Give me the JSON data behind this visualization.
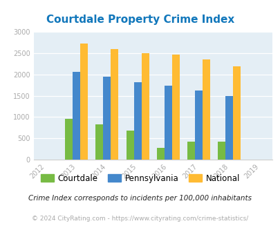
{
  "title": "Courtdale Property Crime Index",
  "years": [
    2012,
    2013,
    2014,
    2015,
    2016,
    2017,
    2018,
    2019
  ],
  "courtdale": [
    null,
    950,
    820,
    680,
    275,
    415,
    415,
    null
  ],
  "pennsylvania": [
    null,
    2060,
    1940,
    1820,
    1740,
    1630,
    1490,
    null
  ],
  "national": [
    null,
    2730,
    2600,
    2500,
    2460,
    2350,
    2185,
    null
  ],
  "courtdale_color": "#77bb44",
  "pennsylvania_color": "#4488cc",
  "national_color": "#ffbb33",
  "background_color": "#e4eef5",
  "fig_background": "#ffffff",
  "ylim": [
    0,
    3000
  ],
  "yticks": [
    0,
    500,
    1000,
    1500,
    2000,
    2500,
    3000
  ],
  "bar_width": 0.25,
  "legend_labels": [
    "Courtdale",
    "Pennsylvania",
    "National"
  ],
  "footnote1": "Crime Index corresponds to incidents per 100,000 inhabitants",
  "footnote2": "© 2024 CityRating.com - https://www.cityrating.com/crime-statistics/",
  "title_color": "#1177bb",
  "footnote1_color": "#222222",
  "footnote2_color": "#aaaaaa",
  "tick_color": "#aaaaaa"
}
